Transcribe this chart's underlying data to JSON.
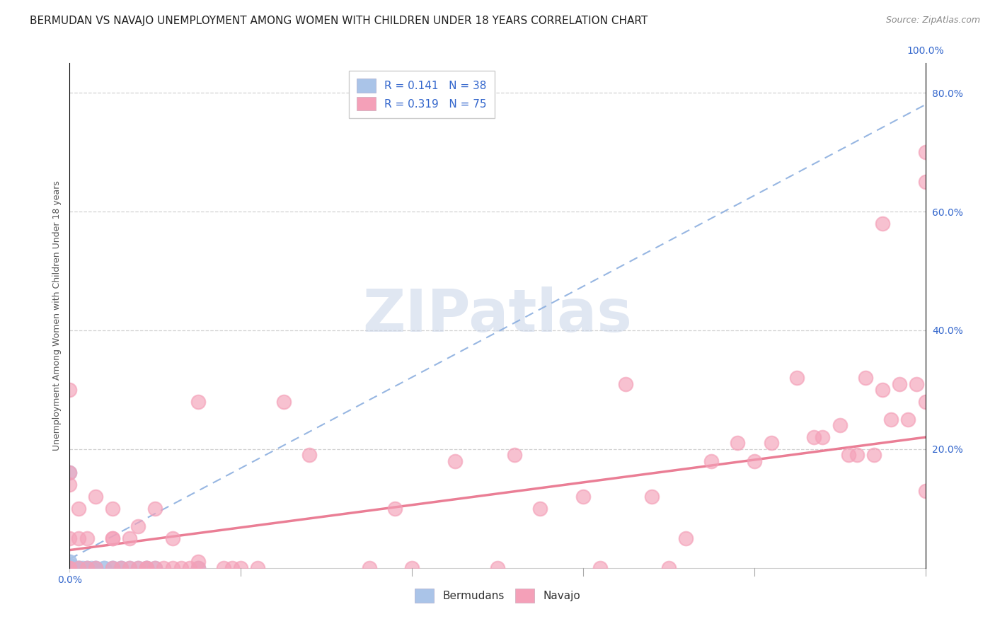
{
  "title": "BERMUDAN VS NAVAJO UNEMPLOYMENT AMONG WOMEN WITH CHILDREN UNDER 18 YEARS CORRELATION CHART",
  "source": "Source: ZipAtlas.com",
  "ylabel": "Unemployment Among Women with Children Under 18 years",
  "watermark": "ZIPatlas",
  "legend_bermudan_R": "0.141",
  "legend_bermudan_N": "38",
  "legend_navajo_R": "0.319",
  "legend_navajo_N": "75",
  "bermudan_color": "#aac4e8",
  "navajo_color": "#f4a0b8",
  "trend_bermudan_color": "#85aadd",
  "trend_navajo_color": "#e8708a",
  "xlim": [
    0.0,
    1.0
  ],
  "ylim": [
    0.0,
    0.85
  ],
  "right_yticks": [
    0.2,
    0.4,
    0.6,
    0.8
  ],
  "right_yticklabels": [
    "20.0%",
    "40.0%",
    "60.0%",
    "80.0%"
  ],
  "blue_color": "#3366cc",
  "background_color": "#ffffff",
  "grid_color": "#cccccc",
  "title_fontsize": 11,
  "axis_label_fontsize": 9,
  "tick_fontsize": 10,
  "legend_fontsize": 11,
  "watermark_fontsize": 60,
  "watermark_color": "#c8d4e8",
  "bermudan_x": [
    0.0,
    0.0,
    0.0,
    0.0,
    0.0,
    0.0,
    0.0,
    0.0,
    0.0,
    0.0,
    0.0,
    0.0,
    0.0,
    0.005,
    0.005,
    0.005,
    0.008,
    0.01,
    0.01,
    0.012,
    0.015,
    0.02,
    0.02,
    0.025,
    0.03,
    0.03,
    0.04,
    0.04,
    0.05,
    0.05,
    0.06,
    0.06,
    0.07,
    0.08,
    0.09,
    0.09,
    0.1,
    0.15
  ],
  "bermudan_y": [
    0.0,
    0.0,
    0.0,
    0.0,
    0.0,
    0.0,
    0.0,
    0.0,
    0.005,
    0.005,
    0.01,
    0.01,
    0.16,
    0.0,
    0.0,
    0.0,
    0.0,
    0.0,
    0.0,
    0.0,
    0.0,
    0.0,
    0.0,
    0.0,
    0.0,
    0.0,
    0.0,
    0.0,
    0.0,
    0.0,
    0.0,
    0.0,
    0.0,
    0.0,
    0.0,
    0.0,
    0.0,
    0.0
  ],
  "navajo_x": [
    0.0,
    0.0,
    0.0,
    0.0,
    0.0,
    0.0,
    0.01,
    0.01,
    0.01,
    0.02,
    0.02,
    0.03,
    0.03,
    0.05,
    0.05,
    0.05,
    0.05,
    0.06,
    0.07,
    0.07,
    0.08,
    0.08,
    0.09,
    0.09,
    0.1,
    0.1,
    0.11,
    0.12,
    0.12,
    0.13,
    0.14,
    0.15,
    0.15,
    0.15,
    0.18,
    0.19,
    0.2,
    0.22,
    0.25,
    0.28,
    0.35,
    0.38,
    0.4,
    0.45,
    0.5,
    0.52,
    0.55,
    0.6,
    0.62,
    0.65,
    0.68,
    0.7,
    0.72,
    0.75,
    0.78,
    0.8,
    0.82,
    0.85,
    0.87,
    0.88,
    0.9,
    0.91,
    0.92,
    0.93,
    0.94,
    0.95,
    0.95,
    0.96,
    0.97,
    0.98,
    0.99,
    1.0,
    1.0,
    1.0,
    1.0
  ],
  "navajo_y": [
    0.0,
    0.0,
    0.05,
    0.14,
    0.16,
    0.3,
    0.0,
    0.05,
    0.1,
    0.0,
    0.05,
    0.0,
    0.12,
    0.0,
    0.05,
    0.05,
    0.1,
    0.0,
    0.0,
    0.05,
    0.0,
    0.07,
    0.0,
    0.0,
    0.0,
    0.1,
    0.0,
    0.0,
    0.05,
    0.0,
    0.0,
    0.0,
    0.01,
    0.28,
    0.0,
    0.0,
    0.0,
    0.0,
    0.28,
    0.19,
    0.0,
    0.1,
    0.0,
    0.18,
    0.0,
    0.19,
    0.1,
    0.12,
    0.0,
    0.31,
    0.12,
    0.0,
    0.05,
    0.18,
    0.21,
    0.18,
    0.21,
    0.32,
    0.22,
    0.22,
    0.24,
    0.19,
    0.19,
    0.32,
    0.19,
    0.58,
    0.3,
    0.25,
    0.31,
    0.25,
    0.31,
    0.13,
    0.28,
    0.65,
    0.7
  ],
  "bermudan_trend_x0": 0.0,
  "bermudan_trend_y0": 0.015,
  "bermudan_trend_x1": 1.0,
  "bermudan_trend_y1": 0.78,
  "navajo_trend_x0": 0.0,
  "navajo_trend_y0": 0.03,
  "navajo_trend_x1": 1.0,
  "navajo_trend_y1": 0.22
}
